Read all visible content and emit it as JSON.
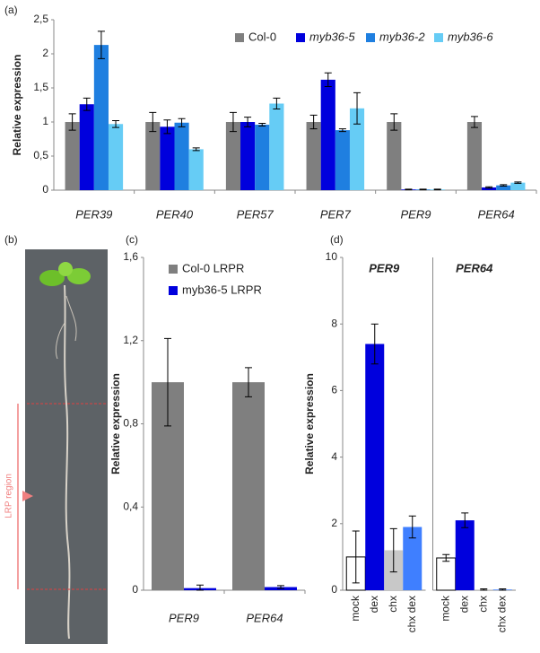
{
  "chart_data": [
    {
      "type": "bar",
      "panel_label": "(a)",
      "y_label": "Relative expression",
      "categories": [
        "PER39",
        "PER40",
        "PER57",
        "PER7",
        "PER9",
        "PER64"
      ],
      "series": [
        {
          "name": "Col-0",
          "color": "#7f7f7f",
          "values": [
            1.0,
            1.0,
            1.0,
            1.0,
            1.0,
            1.0
          ],
          "errors": [
            0.12,
            0.14,
            0.14,
            0.1,
            0.12,
            0.08
          ]
        },
        {
          "name": "myb36-5",
          "color": "#0000dd",
          "values": [
            1.26,
            0.93,
            1.0,
            1.62,
            0.01,
            0.04
          ],
          "errors": [
            0.09,
            0.1,
            0.07,
            0.1,
            0.005,
            0.01
          ]
        },
        {
          "name": "myb36-2",
          "color": "#1f7fe0",
          "values": [
            2.13,
            0.99,
            0.96,
            0.88,
            0.01,
            0.07
          ],
          "errors": [
            0.2,
            0.06,
            0.02,
            0.02,
            0.005,
            0.01
          ]
        },
        {
          "name": "myb36-6",
          "color": "#66ccf5",
          "values": [
            0.97,
            0.6,
            1.27,
            1.2,
            0.01,
            0.11
          ],
          "errors": [
            0.05,
            0.02,
            0.08,
            0.23,
            0.005,
            0.01
          ]
        }
      ],
      "ylim": [
        0,
        2.5
      ],
      "yticks": [
        0,
        {
          "value": 0.5,
          "label": "0,5"
        },
        1,
        {
          "value": 1.5,
          "label": "1,5"
        },
        2,
        {
          "value": 2.5,
          "label": "2,5"
        }
      ]
    },
    {
      "type": "bar",
      "panel_label": "(c)",
      "y_label": "Relative expression",
      "categories": [
        "PER9",
        "PER64"
      ],
      "series": [
        {
          "name": "Col-0 LRPR",
          "color": "#7f7f7f",
          "values": [
            1.0,
            1.0
          ],
          "errors": [
            0.21,
            0.07
          ]
        },
        {
          "name": "myb36-5 LRPR",
          "color": "#0000dd",
          "values": [
            0.01,
            0.015
          ],
          "errors": [
            0.015,
            0.007
          ]
        }
      ],
      "ylim": [
        0,
        1.6
      ],
      "yticks": [
        0,
        {
          "value": 0.4,
          "label": "0,4"
        },
        {
          "value": 0.8,
          "label": "0,8"
        },
        {
          "value": 1.2,
          "label": "1,2"
        },
        {
          "value": 1.6,
          "label": "1,6"
        }
      ]
    },
    {
      "type": "groupedbar",
      "panel_label": "(d)",
      "y_label": "Relative expression",
      "categories": [
        "mock",
        "dex",
        "chx",
        "chx dex"
      ],
      "colors": [
        "#ffffff",
        "#0000dd",
        "#c8c8c8",
        "#3f7fff"
      ],
      "groups": [
        {
          "name": "PER9",
          "values": [
            1.0,
            7.4,
            1.2,
            1.9
          ],
          "errors": [
            0.78,
            0.6,
            0.65,
            0.33
          ]
        },
        {
          "name": "PER64",
          "values": [
            0.97,
            2.1,
            0.02,
            0.02
          ],
          "errors": [
            0.1,
            0.22,
            0.02,
            0.02
          ]
        }
      ],
      "ylim": [
        0,
        10
      ],
      "yticks": [
        0,
        2,
        4,
        6,
        8,
        10
      ]
    }
  ],
  "photo": {
    "panel_label": "(b)",
    "region_label": "LRP region"
  }
}
